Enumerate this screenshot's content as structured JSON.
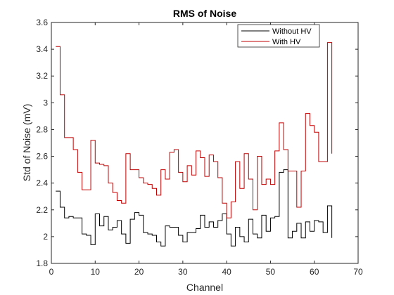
{
  "chart_data": {
    "type": "line",
    "style": "stairs",
    "title": "RMS of Noise",
    "xlabel": "Channel",
    "ylabel": "Std of Noise (mV)",
    "xlim": [
      0,
      70
    ],
    "ylim": [
      1.8,
      3.6
    ],
    "xticks": [
      0,
      10,
      20,
      30,
      40,
      50,
      60,
      70
    ],
    "yticks": [
      1.8,
      2.0,
      2.2,
      2.4,
      2.6,
      2.8,
      3.0,
      3.2,
      3.4,
      3.6
    ],
    "ytick_labels": [
      "1.8",
      "2",
      "2.2",
      "2.4",
      "2.6",
      "2.8",
      "3",
      "3.2",
      "3.4",
      "3.6"
    ],
    "legend_position": "top-right",
    "x": [
      1,
      2,
      3,
      4,
      5,
      6,
      7,
      8,
      9,
      10,
      11,
      12,
      13,
      14,
      15,
      16,
      17,
      18,
      19,
      20,
      21,
      22,
      23,
      24,
      25,
      26,
      27,
      28,
      29,
      30,
      31,
      32,
      33,
      34,
      35,
      36,
      37,
      38,
      39,
      40,
      41,
      42,
      43,
      44,
      45,
      46,
      47,
      48,
      49,
      50,
      51,
      52,
      53,
      54,
      55,
      56,
      57,
      58,
      59,
      60,
      61,
      62,
      63,
      64
    ],
    "series": [
      {
        "name": "Without HV",
        "color": "#000000",
        "values": [
          2.34,
          2.22,
          2.14,
          2.15,
          2.14,
          2.14,
          2.02,
          2.01,
          1.94,
          2.17,
          2.08,
          2.15,
          2.05,
          2.07,
          2.12,
          2.02,
          1.95,
          2.13,
          2.18,
          2.16,
          2.03,
          2.02,
          2.01,
          1.96,
          1.93,
          2.08,
          2.07,
          2.07,
          2.01,
          1.96,
          2.03,
          2.03,
          2.06,
          2.16,
          2.07,
          2.11,
          2.07,
          2.12,
          2.17,
          2.02,
          1.93,
          2.07,
          2.0,
          1.96,
          2.13,
          2.02,
          1.99,
          2.16,
          2.04,
          2.14,
          2.15,
          2.48,
          2.5,
          1.99,
          2.04,
          2.1,
          1.99,
          2.11,
          2.04,
          2.12,
          2.11,
          2.03,
          2.23,
          1.99
        ]
      },
      {
        "name": "With HV",
        "color": "#c00000",
        "values": [
          3.42,
          3.06,
          2.74,
          2.74,
          2.65,
          2.48,
          2.35,
          2.35,
          2.72,
          2.55,
          2.54,
          2.53,
          2.4,
          2.33,
          2.27,
          2.25,
          2.62,
          2.5,
          2.5,
          2.44,
          2.4,
          2.39,
          2.36,
          2.31,
          2.5,
          2.43,
          2.63,
          2.65,
          2.48,
          2.41,
          2.53,
          2.46,
          2.64,
          2.59,
          2.45,
          2.61,
          2.56,
          2.44,
          2.25,
          2.14,
          2.26,
          2.56,
          2.36,
          2.62,
          2.43,
          2.2,
          2.6,
          2.39,
          2.43,
          2.39,
          2.64,
          2.85,
          2.65,
          2.49,
          2.49,
          2.22,
          2.49,
          2.92,
          2.83,
          2.78,
          2.56,
          2.56,
          3.45,
          2.62
        ]
      }
    ]
  }
}
